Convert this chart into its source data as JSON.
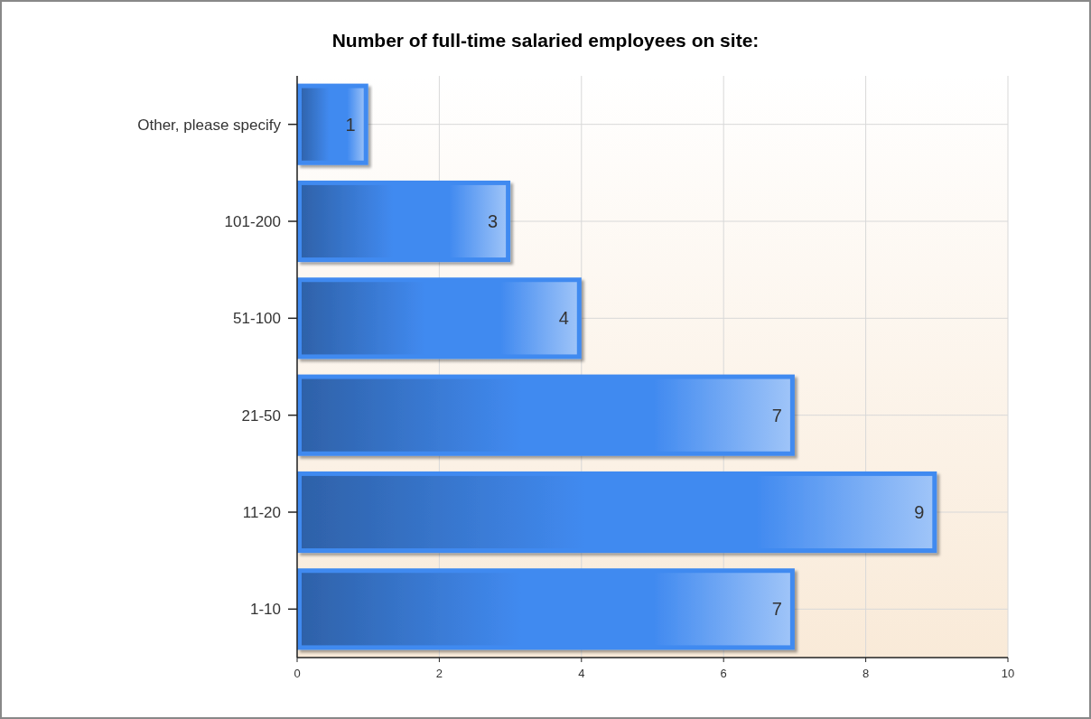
{
  "chart_data": {
    "type": "bar",
    "orientation": "horizontal",
    "title": "Number of full-time salaried employees on site:",
    "categories": [
      "Other, please specify",
      "101-200",
      "51-100",
      "21-50",
      "11-20",
      "1-10"
    ],
    "values": [
      1,
      3,
      4,
      7,
      9,
      7
    ],
    "color": "#418af0",
    "xlim": [
      0,
      10
    ],
    "xticks": [
      0,
      2,
      4,
      6,
      8,
      10
    ],
    "grid": true,
    "data_labels": true
  }
}
